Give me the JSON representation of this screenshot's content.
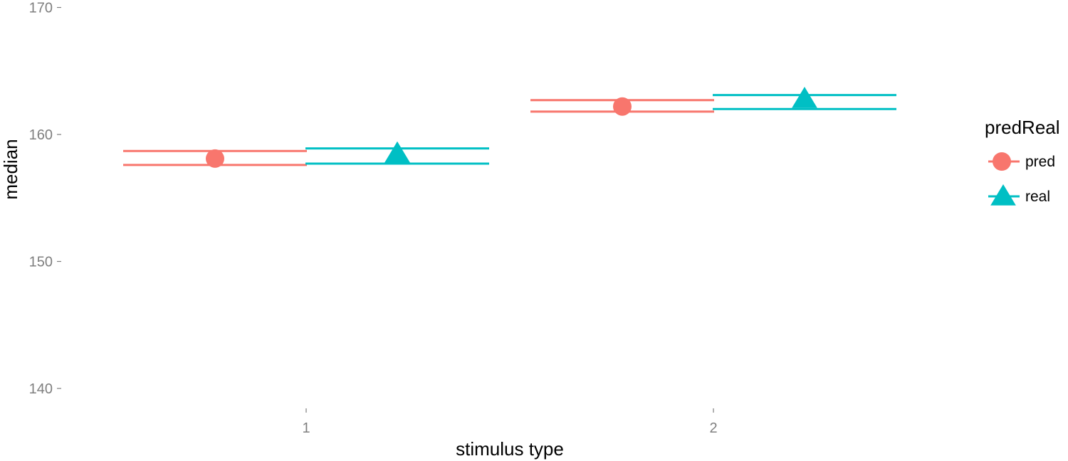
{
  "chart_data": {
    "type": "errorbar",
    "xlabel": "stimulus type",
    "ylabel": "median",
    "categories": [
      "1",
      "2"
    ],
    "ylim": [
      137.5,
      170
    ],
    "yticks": [
      140,
      150,
      160,
      170
    ],
    "grid": false,
    "legend": {
      "title": "predReal",
      "position": "right"
    },
    "series": [
      {
        "name": "pred",
        "color": "#F8766D",
        "marker": "circle",
        "points": [
          {
            "x": "1",
            "y": 158.1,
            "ymin": 157.6,
            "ymax": 158.7
          },
          {
            "x": "2",
            "y": 162.2,
            "ymin": 161.8,
            "ymax": 162.7
          }
        ]
      },
      {
        "name": "real",
        "color": "#00BFC4",
        "marker": "triangle",
        "points": [
          {
            "x": "1",
            "y": 158.5,
            "ymin": 157.7,
            "ymax": 158.9
          },
          {
            "x": "2",
            "y": 162.8,
            "ymin": 162.0,
            "ymax": 163.1
          }
        ]
      }
    ]
  }
}
